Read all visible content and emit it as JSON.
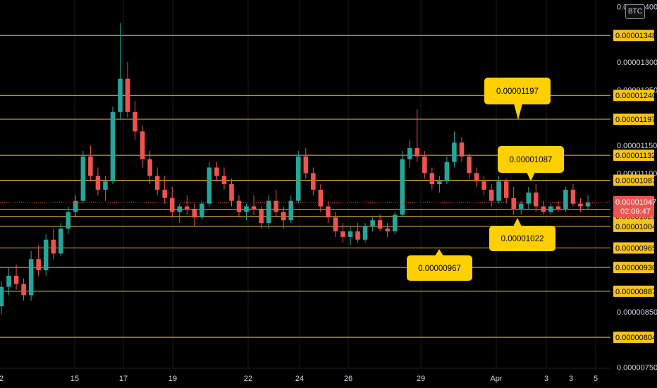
{
  "symbol_badge": "BTC",
  "colors": {
    "background": "#000000",
    "level_line": "#f0c02f",
    "level_label_bg": "#f7c41b",
    "callout_bg": "#ffd000",
    "candle_up": "#26a69a",
    "candle_down": "#ef5350",
    "current_price_bg": "#ef5350",
    "axis_text": "#d1d4dc",
    "grid": "#1a1a1a"
  },
  "chart_data": {
    "type": "candlestick",
    "y_axis_ticks": [
      "0.00001400",
      "0.00001300",
      "0.00001250",
      "0.00001150",
      "0.00001100",
      "0.00000850",
      "0.00000750"
    ],
    "x_axis_ticks": [
      "2",
      "15",
      "17",
      "19",
      "22",
      "24",
      "26",
      "29",
      "Apr",
      "3",
      "5"
    ],
    "x_axis_ticks_extra": [
      "3"
    ],
    "levels": [
      "0.00001348",
      "0.00001240",
      "0.00001197",
      "0.00001132",
      "0.00001087",
      "0.00001035",
      "0.00001022",
      "0.00001004",
      "0.00000965",
      "0.00000930",
      "0.00000887",
      "0.00000804"
    ],
    "current_price": "0.00001047",
    "countdown": "02:09:47",
    "callouts": [
      "0.00001197",
      "0.00001087",
      "0.00001022",
      "0.00000967"
    ],
    "ohlc": [
      [
        8.6e-06,
        9.05e-06,
        8.45e-06,
        8.95e-06
      ],
      [
        8.95e-06,
        9.3e-06,
        8.8e-06,
        9.15e-06
      ],
      [
        9.15e-06,
        9.35e-06,
        8.9e-06,
        9e-06
      ],
      [
        9e-06,
        9.1e-06,
        8.7e-06,
        8.8e-06
      ],
      [
        8.8e-06,
        9.6e-06,
        8.7e-06,
        9.45e-06
      ],
      [
        9.45e-06,
        9.7e-06,
        9.15e-06,
        9.25e-06
      ],
      [
        9.25e-06,
        9.9e-06,
        9.15e-06,
        9.8e-06
      ],
      [
        9.8e-06,
        1e-05,
        9.45e-06,
        9.55e-06
      ],
      [
        9.55e-06,
        1.01e-05,
        9.5e-06,
        1e-05
      ],
      [
        1e-05,
        1.04e-05,
        9.9e-06,
        1.03e-05
      ],
      [
        1.03e-05,
        1.06e-05,
        1.02e-05,
        1.05e-05
      ],
      [
        1.05e-05,
        1.14e-05,
        1.045e-05,
        1.13e-05
      ],
      [
        1.13e-05,
        1.15e-05,
        1.085e-05,
        1.095e-05
      ],
      [
        1.095e-05,
        1.11e-05,
        1.06e-05,
        1.07e-05
      ],
      [
        1.07e-05,
        1.095e-05,
        1.05e-05,
        1.085e-05
      ],
      [
        1.085e-05,
        1.22e-05,
        1.08e-05,
        1.21e-05
      ],
      [
        1.21e-05,
        1.37e-05,
        1.195e-05,
        1.27e-05
      ],
      [
        1.27e-05,
        1.3e-05,
        1.2e-05,
        1.21e-05
      ],
      [
        1.21e-05,
        1.23e-05,
        1.16e-05,
        1.175e-05
      ],
      [
        1.175e-05,
        1.185e-05,
        1.11e-05,
        1.125e-05
      ],
      [
        1.125e-05,
        1.14e-05,
        1.08e-05,
        1.095e-05
      ],
      [
        1.095e-05,
        1.11e-05,
        1.06e-05,
        1.07e-05
      ],
      [
        1.07e-05,
        1.095e-05,
        1.045e-05,
        1.055e-05
      ],
      [
        1.055e-05,
        1.075e-05,
        1.02e-05,
        1.03e-05
      ],
      [
        1.03e-05,
        1.045e-05,
        1.01e-05,
        1.04e-05
      ],
      [
        1.04e-05,
        1.06e-05,
        1.025e-05,
        1.035e-05
      ],
      [
        1.035e-05,
        1.045e-05,
        1.005e-05,
        1.02e-05
      ],
      [
        1.02e-05,
        1.05e-05,
        1.015e-05,
        1.045e-05
      ],
      [
        1.045e-05,
        1.12e-05,
        1.04e-05,
        1.11e-05
      ],
      [
        1.11e-05,
        1.12e-05,
        1.085e-05,
        1.095e-05
      ],
      [
        1.095e-05,
        1.11e-05,
        1.07e-05,
        1.08e-05
      ],
      [
        1.08e-05,
        1.09e-05,
        1.04e-05,
        1.05e-05
      ],
      [
        1.05e-05,
        1.06e-05,
        1.02e-05,
        1.03e-05
      ],
      [
        1.03e-05,
        1.045e-05,
        1.015e-05,
        1.04e-05
      ],
      [
        1.04e-05,
        1.06e-05,
        1.025e-05,
        1.035e-05
      ],
      [
        1.035e-05,
        1.04e-05,
        1e-05,
        1.01e-05
      ],
      [
        1.01e-05,
        1.06e-05,
        1e-05,
        1.05e-05
      ],
      [
        1.05e-05,
        1.07e-05,
        1.02e-05,
        1.03e-05
      ],
      [
        1.03e-05,
        1.04e-05,
        1e-05,
        1.015e-05
      ],
      [
        1.015e-05,
        1.06e-05,
        1.01e-05,
        1.05e-05
      ],
      [
        1.05e-05,
        1.14e-05,
        1.045e-05,
        1.13e-05
      ],
      [
        1.13e-05,
        1.145e-05,
        1.09e-05,
        1.1e-05
      ],
      [
        1.1e-05,
        1.11e-05,
        1.06e-05,
        1.07e-05
      ],
      [
        1.07e-05,
        1.08e-05,
        1.03e-05,
        1.04e-05
      ],
      [
        1.04e-05,
        1.05e-05,
        1.01e-05,
        1.02e-05
      ],
      [
        1.02e-05,
        1.03e-05,
        9.85e-06,
        9.95e-06
      ],
      [
        9.95e-06,
        1.01e-05,
        9.75e-06,
        9.85e-06
      ],
      [
        9.85e-06,
        1.005e-05,
        9.7e-06,
        9.95e-06
      ],
      [
        9.95e-06,
        1.01e-05,
        9.75e-06,
        9.8e-06
      ],
      [
        9.8e-06,
        1.01e-05,
        9.75e-06,
        1.005e-05
      ],
      [
        1.005e-05,
        1.02e-05,
        9.95e-06,
        1.015e-05
      ],
      [
        1.015e-05,
        1.025e-05,
        9.95e-06,
        1e-05
      ],
      [
        1e-05,
        1.01e-05,
        9.85e-06,
        9.95e-06
      ],
      [
        9.95e-06,
        1.03e-05,
        9.9e-06,
        1.025e-05
      ],
      [
        1.025e-05,
        1.14e-05,
        1.02e-05,
        1.125e-05
      ],
      [
        1.125e-05,
        1.16e-05,
        1.11e-05,
        1.145e-05
      ],
      [
        1.145e-05,
        1.215e-05,
        1.12e-05,
        1.13e-05
      ],
      [
        1.13e-05,
        1.14e-05,
        1.09e-05,
        1.1e-05
      ],
      [
        1.1e-05,
        1.11e-05,
        1.07e-05,
        1.08e-05
      ],
      [
        1.08e-05,
        1.095e-05,
        1.065e-05,
        1.085e-05
      ],
      [
        1.085e-05,
        1.13e-05,
        1.08e-05,
        1.12e-05
      ],
      [
        1.12e-05,
        1.175e-05,
        1.11e-05,
        1.155e-05
      ],
      [
        1.155e-05,
        1.165e-05,
        1.12e-05,
        1.13e-05
      ],
      [
        1.13e-05,
        1.135e-05,
        1.09e-05,
        1.1e-05
      ],
      [
        1.1e-05,
        1.11e-05,
        1.075e-05,
        1.085e-05
      ],
      [
        1.085e-05,
        1.095e-05,
        1.06e-05,
        1.07e-05
      ],
      [
        1.07e-05,
        1.08e-05,
        1.04e-05,
        1.05e-05
      ],
      [
        1.05e-05,
        1.095e-05,
        1.045e-05,
        1.085e-05
      ],
      [
        1.085e-05,
        1.09e-05,
        1.045e-05,
        1.055e-05
      ],
      [
        1.055e-05,
        1.075e-05,
        1.025e-05,
        1.035e-05
      ],
      [
        1.035e-05,
        1.05e-05,
        1.025e-05,
        1.045e-05
      ],
      [
        1.045e-05,
        1.075e-05,
        1.035e-05,
        1.065e-05
      ],
      [
        1.065e-05,
        1.08e-05,
        1.03e-05,
        1.04e-05
      ],
      [
        1.04e-05,
        1.05e-05,
        1.025e-05,
        1.03e-05
      ],
      [
        1.03e-05,
        1.045e-05,
        1.025e-05,
        1.04e-05
      ],
      [
        1.04e-05,
        1.05e-05,
        1.03e-05,
        1.035e-05
      ],
      [
        1.035e-05,
        1.075e-05,
        1.03e-05,
        1.07e-05
      ],
      [
        1.07e-05,
        1.08e-05,
        1.04e-05,
        1.045e-05
      ],
      [
        1.045e-05,
        1.055e-05,
        1.03e-05,
        1.04e-05
      ],
      [
        1.04e-05,
        1.06e-05,
        1.035e-05,
        1.047e-05
      ]
    ]
  }
}
